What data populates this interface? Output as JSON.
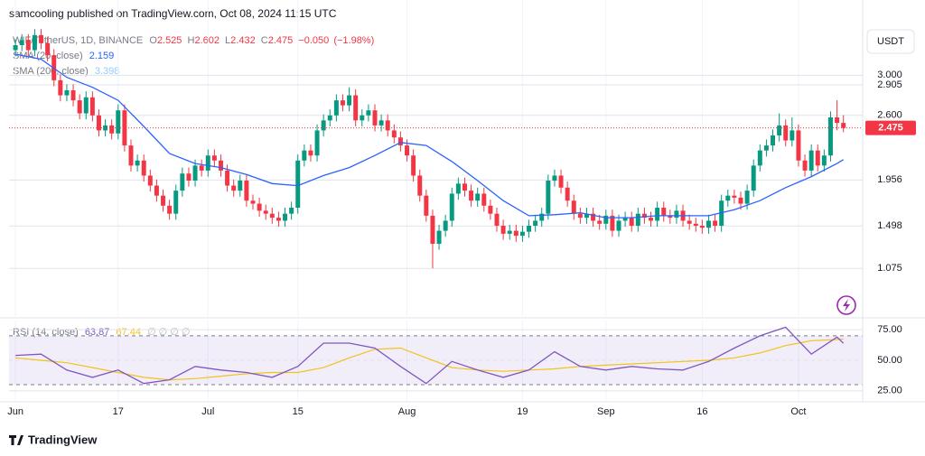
{
  "chart_data": {
    "type": "candlestick",
    "header": "samcooling published on TradingView.com, Oct 08, 2024 11:15 UTC",
    "symbol": "WIF/TetherUS, 1D, BINANCE",
    "legend_labels": [
      "O",
      "H",
      "L",
      "C"
    ],
    "change": {
      "value": -0.05,
      "label": "−0.050"
    },
    "change_pct": {
      "value": -1.98,
      "label": "(−1.98%)"
    },
    "currency": "USDT",
    "brand": "TradingView",
    "up_color": "#089981",
    "down_color": "#f23645",
    "x": [
      "2024-06-01",
      "2024-06-02",
      "2024-06-03",
      "2024-06-04",
      "2024-06-05",
      "2024-06-06",
      "2024-06-07",
      "2024-06-08",
      "2024-06-09",
      "2024-06-10",
      "2024-06-11",
      "2024-06-12",
      "2024-06-13",
      "2024-06-14",
      "2024-06-15",
      "2024-06-16",
      "2024-06-17",
      "2024-06-18",
      "2024-06-19",
      "2024-06-20",
      "2024-06-21",
      "2024-06-22",
      "2024-06-23",
      "2024-06-24",
      "2024-06-25",
      "2024-06-26",
      "2024-06-27",
      "2024-06-28",
      "2024-06-29",
      "2024-06-30",
      "2024-07-01",
      "2024-07-02",
      "2024-07-03",
      "2024-07-04",
      "2024-07-05",
      "2024-07-06",
      "2024-07-07",
      "2024-07-08",
      "2024-07-09",
      "2024-07-10",
      "2024-07-11",
      "2024-07-12",
      "2024-07-13",
      "2024-07-14",
      "2024-07-15",
      "2024-07-16",
      "2024-07-17",
      "2024-07-18",
      "2024-07-19",
      "2024-07-20",
      "2024-07-21",
      "2024-07-22",
      "2024-07-23",
      "2024-07-24",
      "2024-07-25",
      "2024-07-26",
      "2024-07-27",
      "2024-07-28",
      "2024-07-29",
      "2024-07-30",
      "2024-07-31",
      "2024-08-01",
      "2024-08-02",
      "2024-08-03",
      "2024-08-04",
      "2024-08-05",
      "2024-08-06",
      "2024-08-07",
      "2024-08-08",
      "2024-08-09",
      "2024-08-10",
      "2024-08-11",
      "2024-08-12",
      "2024-08-13",
      "2024-08-14",
      "2024-08-15",
      "2024-08-16",
      "2024-08-17",
      "2024-08-18",
      "2024-08-19",
      "2024-08-20",
      "2024-08-21",
      "2024-08-22",
      "2024-08-23",
      "2024-08-24",
      "2024-08-25",
      "2024-08-26",
      "2024-08-27",
      "2024-08-28",
      "2024-08-29",
      "2024-08-30",
      "2024-08-31",
      "2024-09-01",
      "2024-09-02",
      "2024-09-03",
      "2024-09-04",
      "2024-09-05",
      "2024-09-06",
      "2024-09-07",
      "2024-09-08",
      "2024-09-09",
      "2024-09-10",
      "2024-09-11",
      "2024-09-12",
      "2024-09-13",
      "2024-09-14",
      "2024-09-15",
      "2024-09-16",
      "2024-09-17",
      "2024-09-18",
      "2024-09-19",
      "2024-09-20",
      "2024-09-21",
      "2024-09-22",
      "2024-09-23",
      "2024-09-24",
      "2024-09-25",
      "2024-09-26",
      "2024-09-27",
      "2024-09-28",
      "2024-09-29",
      "2024-09-30",
      "2024-10-01",
      "2024-10-02",
      "2024-10-03",
      "2024-10-04",
      "2024-10-05",
      "2024-10-06",
      "2024-10-07",
      "2024-10-08"
    ],
    "open": [
      3.25,
      3.3,
      3.35,
      3.25,
      3.4,
      3.32,
      3.2,
      2.95,
      2.8,
      2.85,
      2.75,
      2.62,
      2.78,
      2.6,
      2.45,
      2.5,
      2.42,
      2.65,
      2.3,
      2.1,
      2.15,
      2.0,
      1.9,
      1.8,
      1.7,
      1.62,
      1.85,
      2.02,
      1.95,
      2.1,
      2.05,
      2.2,
      2.15,
      2.05,
      1.9,
      1.85,
      1.95,
      1.75,
      1.72,
      1.65,
      1.62,
      1.58,
      1.55,
      1.62,
      1.68,
      2.15,
      2.25,
      2.2,
      2.45,
      2.55,
      2.6,
      2.75,
      2.7,
      2.8,
      2.55,
      2.6,
      2.65,
      2.5,
      2.55,
      2.45,
      2.38,
      2.3,
      2.2,
      2.0,
      1.8,
      1.6,
      1.32,
      1.45,
      1.55,
      1.82,
      1.92,
      1.85,
      1.75,
      1.82,
      1.7,
      1.62,
      1.5,
      1.42,
      1.45,
      1.4,
      1.44,
      1.5,
      1.55,
      1.62,
      1.95,
      2.0,
      1.88,
      1.75,
      1.62,
      1.58,
      1.62,
      1.55,
      1.52,
      1.6,
      1.45,
      1.55,
      1.58,
      1.5,
      1.62,
      1.58,
      1.55,
      1.68,
      1.6,
      1.58,
      1.65,
      1.55,
      1.52,
      1.5,
      1.48,
      1.55,
      1.5,
      1.75,
      1.8,
      1.78,
      1.72,
      1.85,
      2.1,
      2.25,
      2.3,
      2.4,
      2.5,
      2.35,
      2.45,
      2.15,
      2.05,
      2.25,
      2.1,
      2.2,
      2.58,
      2.525
    ],
    "high": [
      3.36,
      3.41,
      3.41,
      3.46,
      3.46,
      3.38,
      3.26,
      3.01,
      2.91,
      2.91,
      2.81,
      2.84,
      2.84,
      2.66,
      2.56,
      2.56,
      2.71,
      2.71,
      2.36,
      2.21,
      2.21,
      2.06,
      1.96,
      1.86,
      1.76,
      1.91,
      2.08,
      2.08,
      2.16,
      2.16,
      2.26,
      2.26,
      2.21,
      2.11,
      1.96,
      2.01,
      2.01,
      1.81,
      1.78,
      1.71,
      1.68,
      1.64,
      1.68,
      1.74,
      2.21,
      2.31,
      2.31,
      2.51,
      2.61,
      2.66,
      2.81,
      2.81,
      2.88,
      2.86,
      2.66,
      2.71,
      2.71,
      2.61,
      2.61,
      2.51,
      2.44,
      2.36,
      2.26,
      2.06,
      1.86,
      1.66,
      1.51,
      1.61,
      1.88,
      1.98,
      1.98,
      1.91,
      1.88,
      1.88,
      1.76,
      1.68,
      1.56,
      1.51,
      1.51,
      1.5,
      1.56,
      1.61,
      1.68,
      2.01,
      2.06,
      2.06,
      1.94,
      1.81,
      1.68,
      1.68,
      1.68,
      1.61,
      1.66,
      1.66,
      1.61,
      1.64,
      1.64,
      1.68,
      1.68,
      1.64,
      1.74,
      1.74,
      1.66,
      1.71,
      1.71,
      1.61,
      1.58,
      1.56,
      1.61,
      1.61,
      1.81,
      1.86,
      1.86,
      1.84,
      1.91,
      2.16,
      2.31,
      2.36,
      2.46,
      2.62,
      2.56,
      2.58,
      2.51,
      2.21,
      2.31,
      2.31,
      2.26,
      2.64,
      2.75,
      2.602
    ],
    "low": [
      3.19,
      3.24,
      3.19,
      3.19,
      3.26,
      3.14,
      2.89,
      2.74,
      2.74,
      2.69,
      2.56,
      2.56,
      2.54,
      2.39,
      2.39,
      2.36,
      2.36,
      2.24,
      2.04,
      2.04,
      1.94,
      1.84,
      1.74,
      1.64,
      1.56,
      1.56,
      1.79,
      1.89,
      1.89,
      1.99,
      1.99,
      2.09,
      1.99,
      1.84,
      1.79,
      1.79,
      1.69,
      1.66,
      1.59,
      1.56,
      1.52,
      1.49,
      1.49,
      1.56,
      1.62,
      2.09,
      2.14,
      2.14,
      2.39,
      2.49,
      2.54,
      2.64,
      2.64,
      2.49,
      2.49,
      2.54,
      2.44,
      2.44,
      2.39,
      2.32,
      2.24,
      2.14,
      1.94,
      1.74,
      1.54,
      1.075,
      1.26,
      1.39,
      1.49,
      1.76,
      1.79,
      1.69,
      1.69,
      1.64,
      1.56,
      1.44,
      1.36,
      1.36,
      1.34,
      1.34,
      1.38,
      1.44,
      1.49,
      1.56,
      1.89,
      1.82,
      1.69,
      1.56,
      1.52,
      1.52,
      1.49,
      1.46,
      1.46,
      1.39,
      1.39,
      1.49,
      1.44,
      1.44,
      1.52,
      1.49,
      1.49,
      1.54,
      1.52,
      1.52,
      1.49,
      1.46,
      1.44,
      1.42,
      1.42,
      1.44,
      1.44,
      1.69,
      1.72,
      1.66,
      1.66,
      1.79,
      2.04,
      2.19,
      2.24,
      2.34,
      2.29,
      2.29,
      2.09,
      1.99,
      1.99,
      2.04,
      2.04,
      2.14,
      2.45,
      2.432
    ],
    "close": [
      3.3,
      3.35,
      3.25,
      3.4,
      3.32,
      3.2,
      2.95,
      2.8,
      2.85,
      2.75,
      2.62,
      2.78,
      2.6,
      2.45,
      2.5,
      2.42,
      2.65,
      2.3,
      2.1,
      2.15,
      2.0,
      1.9,
      1.8,
      1.7,
      1.62,
      1.85,
      2.02,
      1.95,
      2.1,
      2.05,
      2.2,
      2.15,
      2.05,
      1.9,
      1.85,
      1.95,
      1.75,
      1.72,
      1.65,
      1.62,
      1.58,
      1.55,
      1.62,
      1.68,
      2.15,
      2.25,
      2.2,
      2.45,
      2.55,
      2.6,
      2.75,
      2.7,
      2.8,
      2.55,
      2.6,
      2.65,
      2.5,
      2.55,
      2.45,
      2.38,
      2.3,
      2.2,
      2.0,
      1.8,
      1.6,
      1.32,
      1.45,
      1.55,
      1.82,
      1.92,
      1.85,
      1.75,
      1.82,
      1.7,
      1.62,
      1.5,
      1.42,
      1.45,
      1.4,
      1.44,
      1.5,
      1.55,
      1.62,
      1.95,
      2.0,
      1.88,
      1.75,
      1.62,
      1.58,
      1.62,
      1.55,
      1.52,
      1.6,
      1.45,
      1.55,
      1.58,
      1.5,
      1.62,
      1.58,
      1.55,
      1.68,
      1.6,
      1.58,
      1.65,
      1.55,
      1.52,
      1.5,
      1.48,
      1.55,
      1.5,
      1.75,
      1.8,
      1.78,
      1.72,
      1.85,
      2.1,
      2.25,
      2.3,
      2.4,
      2.5,
      2.35,
      2.45,
      2.15,
      2.05,
      2.25,
      2.1,
      2.2,
      2.58,
      2.525,
      2.475
    ],
    "xlim": [
      "2024-05-31",
      "2024-10-11"
    ],
    "xticks": [
      {
        "value": "2024-06-01",
        "label": "Jun"
      },
      {
        "value": "2024-06-17",
        "label": "17"
      },
      {
        "value": "2024-07-01",
        "label": "Jul"
      },
      {
        "value": "2024-07-15",
        "label": "15"
      },
      {
        "value": "2024-08-01",
        "label": "Aug"
      },
      {
        "value": "2024-08-19",
        "label": "19"
      },
      {
        "value": "2024-09-01",
        "label": "Sep"
      },
      {
        "value": "2024-09-16",
        "label": "16"
      },
      {
        "value": "2024-10-01",
        "label": "Oct"
      }
    ],
    "ylim": [
      0.6,
      3.48
    ],
    "yticks": [
      {
        "value": 3,
        "label": "3.000"
      },
      2.905,
      {
        "value": 2.6,
        "label": "2.600"
      },
      1.956,
      1.498,
      1.075
    ],
    "grid": true,
    "indicator_x": [
      "2024-06-01",
      "2024-06-05",
      "2024-06-09",
      "2024-06-13",
      "2024-06-17",
      "2024-06-21",
      "2024-06-25",
      "2024-06-29",
      "2024-07-03",
      "2024-07-07",
      "2024-07-11",
      "2024-07-15",
      "2024-07-19",
      "2024-07-23",
      "2024-07-27",
      "2024-07-31",
      "2024-08-04",
      "2024-08-08",
      "2024-08-12",
      "2024-08-16",
      "2024-08-20",
      "2024-08-24",
      "2024-08-28",
      "2024-09-01",
      "2024-09-05",
      "2024-09-09",
      "2024-09-13",
      "2024-09-17",
      "2024-09-21",
      "2024-09-25",
      "2024-09-29",
      "2024-10-03",
      "2024-10-07",
      "2024-10-08"
    ],
    "overlays": [
      {
        "name": "SMA (20, close)",
        "color": "#2962ff",
        "values": [
          3.21,
          3.16,
          2.98,
          2.88,
          2.75,
          2.49,
          2.22,
          2.12,
          2.08,
          2.01,
          1.92,
          1.9,
          2.0,
          2.08,
          2.2,
          2.33,
          2.3,
          2.14,
          1.95,
          1.75,
          1.6,
          1.61,
          1.63,
          1.58,
          1.58,
          1.6,
          1.6,
          1.6,
          1.66,
          1.75,
          1.88,
          1.99,
          2.12,
          2.159
        ]
      }
    ],
    "sma200": {
      "name": "SMA (200, close)",
      "color": "#90caf9",
      "value": 3.398
    },
    "rsi": {
      "name": "RSI (14, close)",
      "color": "#7e57c2",
      "extra": "∅ ∅ ∅ ∅",
      "values": [
        54,
        55,
        42,
        36,
        42,
        31,
        34,
        45,
        42,
        40,
        36,
        45,
        64,
        64,
        60,
        45,
        31,
        49,
        42,
        36,
        42,
        57,
        45,
        42,
        45,
        43,
        42,
        49,
        60,
        70,
        77,
        55,
        69,
        63.87
      ],
      "ma": {
        "color": "#f2c21b",
        "values": [
          52,
          50,
          48,
          44,
          40,
          36,
          34,
          35,
          37,
          39,
          40,
          40,
          44,
          52,
          59,
          60,
          52,
          44,
          42,
          41,
          42,
          43,
          45,
          46,
          47,
          48,
          49,
          50,
          52,
          56,
          62,
          66,
          67,
          67.44
        ]
      },
      "ylim": [
        16,
        82.5
      ],
      "yticks": [
        {
          "value": 75,
          "label": "75.00"
        },
        {
          "value": 50,
          "label": "50.00"
        },
        {
          "value": 25,
          "label": "25.00"
        }
      ],
      "band": [
        30,
        70
      ],
      "band_color": "#7e57c2"
    }
  }
}
